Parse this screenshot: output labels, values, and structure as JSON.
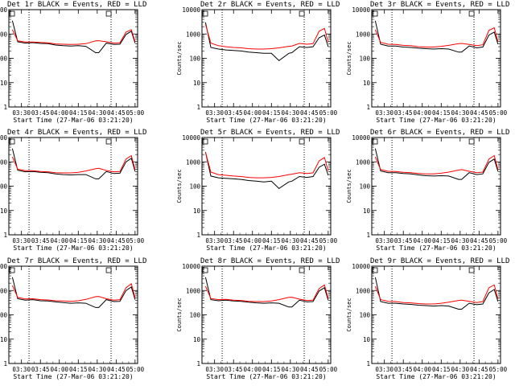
{
  "figure": {
    "title_suffix": "BLACK = Events, RED = LLD",
    "x_axis_label": "Start Time (27-Mar-06 03:21:20)",
    "y_axis_label": "Counts/sec"
  },
  "colors": {
    "events": "#000000",
    "lld": "#ff0000",
    "grid": "#000000"
  },
  "x_tick_labels": [
    "03:30",
    "03:45",
    "04:00",
    "04:15",
    "04:30",
    "04:45",
    "05:00"
  ],
  "y_tick_labels": [
    "1",
    "10",
    "100",
    "1000",
    "10000"
  ],
  "chart_data": [
    {
      "type": "line",
      "title": "Det 1r",
      "xlabel": "Start Time (27-Mar-06 03:21:20)",
      "ylabel": "Counts/sec",
      "xlim": [
        3.3333,
        5.0333
      ],
      "ylim": [
        1,
        10000
      ],
      "yscale": "log",
      "grid": "vertical dotted lines near 03:36, 04:41",
      "x": [
        3.38,
        3.45,
        3.55,
        3.65,
        3.75,
        3.85,
        3.95,
        4.05,
        4.15,
        4.25,
        4.35,
        4.48,
        4.52,
        4.62,
        4.72,
        4.8,
        4.88,
        4.95,
        5.0
      ],
      "series": [
        {
          "name": "Events",
          "values": [
            3500,
            480,
            420,
            440,
            410,
            400,
            350,
            330,
            320,
            330,
            310,
            170,
            170,
            420,
            370,
            380,
            950,
            1300,
            420
          ]
        },
        {
          "name": "LLD",
          "values": [
            1500,
            520,
            470,
            470,
            450,
            430,
            390,
            380,
            370,
            380,
            400,
            520,
            530,
            480,
            420,
            430,
            1200,
            1500,
            480
          ]
        }
      ]
    },
    {
      "type": "line",
      "title": "Det 2r",
      "xlabel": "Start Time (27-Mar-06 03:21:20)",
      "ylabel": "Counts/sec",
      "xlim": [
        3.3333,
        5.0333
      ],
      "ylim": [
        1,
        10000
      ],
      "yscale": "log",
      "grid": "vertical dotted lines near 03:36, 04:41",
      "x": [
        3.38,
        3.45,
        3.55,
        3.65,
        3.75,
        3.85,
        3.95,
        4.05,
        4.15,
        4.25,
        4.35,
        4.48,
        4.52,
        4.62,
        4.72,
        4.8,
        4.88,
        4.95,
        5.0
      ],
      "series": [
        {
          "name": "Events",
          "values": [
            3000,
            280,
            240,
            220,
            210,
            200,
            180,
            170,
            160,
            160,
            80,
            160,
            170,
            300,
            280,
            300,
            700,
            900,
            300
          ]
        },
        {
          "name": "LLD",
          "values": [
            2500,
            420,
            330,
            300,
            280,
            270,
            250,
            240,
            240,
            250,
            270,
            310,
            320,
            410,
            380,
            400,
            1300,
            1700,
            450
          ]
        }
      ]
    },
    {
      "type": "line",
      "title": "Det 3r",
      "xlabel": "Start Time (27-Mar-06 03:21:20)",
      "ylabel": "Counts/sec",
      "xlim": [
        3.3333,
        5.0333
      ],
      "ylim": [
        1,
        10000
      ],
      "yscale": "log",
      "grid": "vertical dotted lines near 03:36, 04:41",
      "x": [
        3.38,
        3.45,
        3.55,
        3.65,
        3.75,
        3.85,
        3.95,
        4.05,
        4.15,
        4.25,
        4.35,
        4.48,
        4.52,
        4.62,
        4.72,
        4.8,
        4.88,
        4.95,
        5.0
      ],
      "series": [
        {
          "name": "Events",
          "values": [
            3500,
            380,
            320,
            320,
            290,
            280,
            260,
            250,
            240,
            250,
            240,
            180,
            180,
            320,
            270,
            290,
            900,
            1200,
            380
          ]
        },
        {
          "name": "LLD",
          "values": [
            1500,
            450,
            380,
            370,
            340,
            330,
            300,
            290,
            290,
            310,
            340,
            400,
            410,
            370,
            330,
            360,
            1400,
            1800,
            480
          ]
        }
      ]
    },
    {
      "type": "line",
      "title": "Det 4r",
      "xlabel": "Start Time (27-Mar-06 03:21:20)",
      "ylabel": "Counts/sec",
      "xlim": [
        3.3333,
        5.0333
      ],
      "ylim": [
        1,
        10000
      ],
      "yscale": "log",
      "grid": "vertical dotted lines near 03:36, 04:41",
      "x": [
        3.38,
        3.45,
        3.55,
        3.65,
        3.75,
        3.85,
        3.95,
        4.05,
        4.15,
        4.25,
        4.35,
        4.48,
        4.52,
        4.62,
        4.72,
        4.8,
        4.88,
        4.95,
        5.0
      ],
      "series": [
        {
          "name": "Events",
          "values": [
            3500,
            450,
            390,
            400,
            370,
            360,
            320,
            300,
            290,
            300,
            300,
            200,
            200,
            400,
            330,
            340,
            1000,
            1400,
            400
          ]
        },
        {
          "name": "LLD",
          "values": [
            1600,
            500,
            430,
            430,
            400,
            390,
            360,
            350,
            350,
            370,
            420,
            520,
            540,
            440,
            390,
            400,
            1300,
            1800,
            480
          ]
        }
      ]
    },
    {
      "type": "line",
      "title": "Det 5r",
      "xlabel": "Start Time (27-Mar-06 03:21:20)",
      "ylabel": "Counts/sec",
      "xlim": [
        3.3333,
        5.0333
      ],
      "ylim": [
        1,
        10000
      ],
      "yscale": "log",
      "grid": "vertical dotted lines near 03:36, 04:41",
      "x": [
        3.38,
        3.45,
        3.55,
        3.65,
        3.75,
        3.85,
        3.95,
        4.05,
        4.15,
        4.25,
        4.35,
        4.48,
        4.52,
        4.62,
        4.72,
        4.8,
        4.88,
        4.95,
        5.0
      ],
      "series": [
        {
          "name": "Events",
          "values": [
            2500,
            260,
            220,
            210,
            200,
            190,
            170,
            160,
            150,
            160,
            80,
            150,
            160,
            250,
            230,
            250,
            600,
            800,
            280
          ]
        },
        {
          "name": "LLD",
          "values": [
            2500,
            380,
            300,
            280,
            260,
            250,
            230,
            220,
            220,
            230,
            250,
            300,
            310,
            360,
            330,
            350,
            1100,
            1500,
            420
          ]
        }
      ]
    },
    {
      "type": "line",
      "title": "Det 6r",
      "xlabel": "Start Time (27-Mar-06 03:21:20)",
      "ylabel": "Counts/sec",
      "xlim": [
        3.3333,
        5.0333
      ],
      "ylim": [
        1,
        10000
      ],
      "yscale": "log",
      "grid": "vertical dotted lines near 03:36, 04:41",
      "x": [
        3.38,
        3.45,
        3.55,
        3.65,
        3.75,
        3.85,
        3.95,
        4.05,
        4.15,
        4.25,
        4.35,
        4.48,
        4.52,
        4.62,
        4.72,
        4.8,
        4.88,
        4.95,
        5.0
      ],
      "series": [
        {
          "name": "Events",
          "values": [
            3500,
            420,
            360,
            360,
            330,
            320,
            290,
            270,
            260,
            270,
            260,
            190,
            190,
            360,
            300,
            320,
            950,
            1300,
            400
          ]
        },
        {
          "name": "LLD",
          "values": [
            1600,
            480,
            410,
            400,
            370,
            360,
            330,
            320,
            320,
            340,
            380,
            460,
            480,
            410,
            360,
            380,
            1300,
            1800,
            480
          ]
        }
      ]
    },
    {
      "type": "line",
      "title": "Det 7r",
      "xlabel": "Start Time (27-Mar-06 03:21:20)",
      "ylabel": "Counts/sec",
      "xlim": [
        3.3333,
        5.0333
      ],
      "ylim": [
        1,
        10000
      ],
      "yscale": "log",
      "grid": "vertical dotted lines near 03:36, 04:41",
      "x": [
        3.38,
        3.45,
        3.55,
        3.65,
        3.75,
        3.85,
        3.95,
        4.05,
        4.15,
        4.25,
        4.35,
        4.48,
        4.52,
        4.62,
        4.72,
        4.8,
        4.88,
        4.95,
        5.0
      ],
      "series": [
        {
          "name": "Events",
          "values": [
            3500,
            460,
            400,
            420,
            380,
            370,
            340,
            320,
            300,
            310,
            300,
            200,
            200,
            420,
            350,
            360,
            1000,
            1400,
            420
          ]
        },
        {
          "name": "LLD",
          "values": [
            1600,
            520,
            450,
            460,
            420,
            410,
            380,
            370,
            360,
            380,
            430,
            560,
            570,
            460,
            400,
            420,
            1300,
            1900,
            500
          ]
        }
      ]
    },
    {
      "type": "line",
      "title": "Det 8r",
      "xlabel": "Start Time (27-Mar-06 03:21:20)",
      "ylabel": "Counts/sec",
      "xlim": [
        3.3333,
        5.0333
      ],
      "ylim": [
        1,
        10000
      ],
      "yscale": "log",
      "grid": "vertical dotted lines near 03:36, 04:41",
      "x": [
        3.38,
        3.45,
        3.55,
        3.65,
        3.75,
        3.85,
        3.95,
        4.05,
        4.15,
        4.25,
        4.35,
        4.48,
        4.52,
        4.62,
        4.72,
        4.8,
        4.88,
        4.95,
        5.0
      ],
      "series": [
        {
          "name": "Events",
          "values": [
            3500,
            420,
            380,
            400,
            370,
            360,
            330,
            310,
            300,
            310,
            300,
            210,
            210,
            400,
            340,
            350,
            950,
            1300,
            400
          ]
        },
        {
          "name": "LLD",
          "values": [
            1500,
            470,
            420,
            430,
            400,
            390,
            360,
            350,
            350,
            370,
            420,
            520,
            530,
            440,
            390,
            400,
            1200,
            1700,
            470
          ]
        }
      ]
    },
    {
      "type": "line",
      "title": "Det 9r",
      "xlabel": "Start Time (27-Mar-06 03:21:20)",
      "ylabel": "Counts/sec",
      "xlim": [
        3.3333,
        5.0333
      ],
      "ylim": [
        1,
        10000
      ],
      "yscale": "log",
      "grid": "vertical dotted lines near 03:36, 04:41",
      "x": [
        3.38,
        3.45,
        3.55,
        3.65,
        3.75,
        3.85,
        3.95,
        4.05,
        4.15,
        4.25,
        4.35,
        4.48,
        4.52,
        4.62,
        4.72,
        4.8,
        4.88,
        4.95,
        5.0
      ],
      "series": [
        {
          "name": "Events",
          "values": [
            3500,
            350,
            300,
            300,
            280,
            270,
            250,
            240,
            230,
            240,
            230,
            170,
            170,
            300,
            260,
            280,
            800,
            1100,
            350
          ]
        },
        {
          "name": "LLD",
          "values": [
            1500,
            420,
            360,
            350,
            320,
            310,
            290,
            280,
            280,
            300,
            330,
            390,
            400,
            360,
            320,
            350,
            1300,
            1700,
            450
          ]
        }
      ]
    }
  ]
}
